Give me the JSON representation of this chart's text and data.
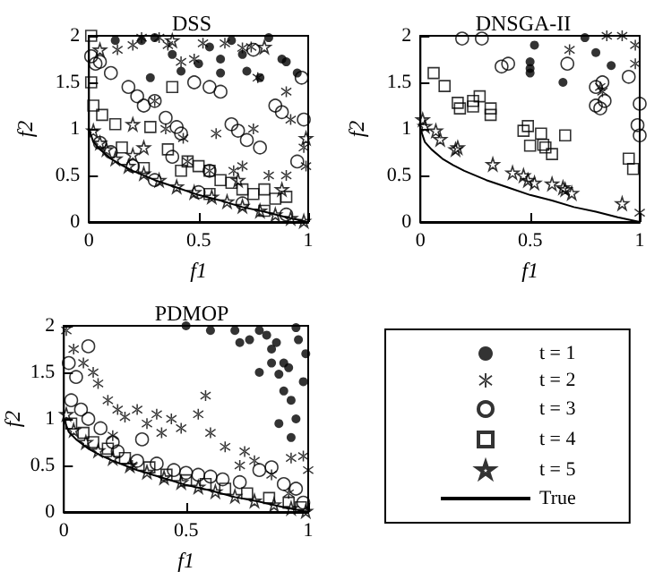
{
  "chart_data": [
    {
      "type": "scatter",
      "title": "DSS",
      "xlabel": "f1",
      "ylabel": "f2",
      "xlim": [
        0,
        1
      ],
      "ylim": [
        0,
        2
      ],
      "xticks": [
        0,
        0.5,
        1
      ],
      "yticks": [
        0,
        0.5,
        1,
        1.5,
        2
      ],
      "grid": false,
      "legend": false,
      "series": [
        {
          "color": "#000000",
          "marker": "circle",
          "x": [
            0.24,
            0.3,
            0.38,
            0.5,
            0.55,
            0.6,
            0.65,
            0.72,
            0.78,
            0.82,
            0.88,
            0.9,
            0.95,
            0.42,
            0.6,
            0.7,
            0.12,
            0.28
          ],
          "values": [
            1.95,
            1.98,
            1.8,
            1.7,
            1.88,
            1.75,
            1.95,
            1.62,
            1.55,
            1.98,
            1.75,
            1.72,
            1.6,
            1.62,
            1.6,
            1.8,
            1.95,
            1.55
          ]
        },
        {
          "color": "#000000",
          "marker": "cross",
          "x": [
            0.13,
            0.2,
            0.24,
            0.32,
            0.36,
            0.42,
            0.48,
            0.52,
            0.62,
            0.7,
            0.74,
            0.77,
            0.9,
            0.92,
            0.98,
            0.9,
            0.7,
            0.66,
            0.45,
            0.43,
            0.55,
            0.3,
            0.35,
            0.58,
            0.82,
            0.75,
            0.99
          ],
          "values": [
            1.85,
            1.9,
            1.98,
            1.98,
            1.9,
            1.72,
            1.75,
            1.92,
            1.92,
            1.87,
            1.88,
            1.55,
            1.4,
            1.1,
            0.8,
            0.5,
            0.6,
            0.55,
            0.65,
            0.9,
            0.55,
            1.3,
            1.0,
            0.95,
            0.5,
            1.0,
            0.6
          ]
        },
        {
          "color": "#000000",
          "marker": "circle",
          "x": [
            0.01,
            0.03,
            0.05,
            0.1,
            0.18,
            0.22,
            0.25,
            0.3,
            0.35,
            0.4,
            0.42,
            0.48,
            0.55,
            0.6,
            0.65,
            0.68,
            0.72,
            0.78,
            0.85,
            0.88,
            0.97,
            0.98,
            0.95,
            0.38,
            0.55,
            0.75,
            0.05,
            0.1,
            0.2,
            0.3,
            0.5,
            0.7,
            0.9
          ],
          "values": [
            1.78,
            1.7,
            1.72,
            1.6,
            1.45,
            1.35,
            1.25,
            1.3,
            1.12,
            1.02,
            0.95,
            1.5,
            1.45,
            1.4,
            1.05,
            0.98,
            0.88,
            0.8,
            1.25,
            1.18,
            1.55,
            1.1,
            0.65,
            0.7,
            0.55,
            1.85,
            0.85,
            0.75,
            0.6,
            0.45,
            0.32,
            0.2,
            0.08
          ]
        },
        {
          "color": "#000000",
          "marker": "square",
          "x": [
            0.01,
            0.01,
            0.02,
            0.06,
            0.12,
            0.15,
            0.28,
            0.38,
            0.36,
            0.45,
            0.5,
            0.55,
            0.6,
            0.65,
            0.7,
            0.75,
            0.8,
            0.85,
            0.9,
            0.42,
            0.25,
            0.55,
            0.8
          ],
          "values": [
            2.0,
            1.5,
            1.25,
            1.15,
            1.05,
            0.8,
            1.02,
            1.45,
            0.78,
            0.65,
            0.6,
            0.55,
            0.45,
            0.42,
            0.35,
            0.3,
            0.35,
            0.25,
            0.27,
            0.55,
            0.58,
            0.3,
            0.12
          ]
        },
        {
          "color": "#000000",
          "marker": "star",
          "x": [
            0.02,
            0.05,
            0.08,
            0.12,
            0.18,
            0.25,
            0.32,
            0.4,
            0.48,
            0.56,
            0.63,
            0.7,
            0.78,
            0.85,
            0.92,
            0.98,
            0.2,
            0.25,
            0.2,
            0.05,
            0.38,
            0.8,
            0.99,
            0.88,
            0.68
          ],
          "values": [
            0.98,
            0.85,
            0.78,
            0.68,
            0.6,
            0.52,
            0.45,
            0.38,
            0.32,
            0.27,
            0.22,
            0.17,
            0.12,
            0.08,
            0.04,
            0.01,
            0.72,
            0.8,
            1.05,
            1.85,
            1.95,
            1.88,
            0.9,
            0.35,
            0.45
          ]
        },
        {
          "type": "line",
          "color": "#000000",
          "marker": "none",
          "x": [
            0,
            0.02,
            0.05,
            0.1,
            0.15,
            0.2,
            0.3,
            0.4,
            0.5,
            0.6,
            0.7,
            0.8,
            0.9,
            1
          ],
          "values": [
            1,
            0.86,
            0.78,
            0.68,
            0.61,
            0.55,
            0.45,
            0.37,
            0.29,
            0.23,
            0.16,
            0.11,
            0.05,
            0
          ]
        }
      ]
    },
    {
      "type": "scatter",
      "title": "DNSGA-II",
      "xlabel": "f1",
      "ylabel": "f2",
      "xlim": [
        0,
        1
      ],
      "ylim": [
        0,
        2
      ],
      "xticks": [
        0,
        0.5,
        1
      ],
      "yticks": [
        0,
        0.5,
        1,
        1.5,
        2
      ],
      "grid": false,
      "legend": false,
      "series": [
        {
          "color": "#000000",
          "marker": "circle",
          "x": [
            0.52,
            0.5,
            0.5,
            0.5,
            0.65,
            0.8,
            0.87,
            0.75
          ],
          "values": [
            1.9,
            1.72,
            1.65,
            1.6,
            1.5,
            1.82,
            1.68,
            1.98
          ]
        },
        {
          "color": "#000000",
          "marker": "cross",
          "x": [
            0.85,
            0.92,
            0.98,
            0.98,
            0.82,
            0.83,
            0.68,
            1.0
          ],
          "values": [
            2.0,
            2.0,
            1.9,
            1.7,
            1.45,
            1.4,
            1.85,
            0.1
          ]
        },
        {
          "color": "#000000",
          "marker": "circle",
          "x": [
            0.19,
            0.28,
            0.37,
            0.4,
            0.67,
            0.8,
            0.8,
            0.82,
            0.84,
            0.83,
            0.95,
            1.0,
            0.99,
            1.0
          ],
          "values": [
            1.97,
            1.97,
            1.67,
            1.7,
            1.7,
            1.45,
            1.25,
            1.22,
            1.3,
            1.5,
            1.56,
            1.27,
            1.04,
            0.93
          ]
        },
        {
          "color": "#000000",
          "marker": "square",
          "x": [
            0.06,
            0.11,
            0.17,
            0.18,
            0.24,
            0.24,
            0.27,
            0.32,
            0.32,
            0.47,
            0.49,
            0.5,
            0.55,
            0.56,
            0.57,
            0.6,
            0.66,
            0.95,
            0.97
          ],
          "values": [
            1.6,
            1.46,
            1.28,
            1.22,
            1.24,
            1.3,
            1.35,
            1.22,
            1.15,
            0.98,
            1.03,
            0.82,
            0.95,
            0.83,
            0.8,
            0.73,
            0.93,
            0.68,
            0.57
          ]
        },
        {
          "color": "#000000",
          "marker": "star",
          "x": [
            0.01,
            0.02,
            0.07,
            0.09,
            0.16,
            0.17,
            0.33,
            0.42,
            0.47,
            0.49,
            0.52,
            0.6,
            0.65,
            0.66,
            0.69,
            0.92
          ],
          "values": [
            1.1,
            1.03,
            0.98,
            0.89,
            0.78,
            0.8,
            0.62,
            0.53,
            0.5,
            0.45,
            0.42,
            0.41,
            0.37,
            0.35,
            0.31,
            0.2
          ]
        },
        {
          "type": "line",
          "color": "#000000",
          "marker": "none",
          "x": [
            0,
            0.02,
            0.05,
            0.1,
            0.15,
            0.2,
            0.3,
            0.4,
            0.5,
            0.6,
            0.7,
            0.8,
            0.9,
            1
          ],
          "values": [
            1,
            0.86,
            0.78,
            0.68,
            0.61,
            0.55,
            0.45,
            0.37,
            0.29,
            0.23,
            0.16,
            0.11,
            0.05,
            0
          ]
        }
      ]
    },
    {
      "type": "scatter",
      "title": "PDMOP",
      "xlabel": "f1",
      "ylabel": "f2",
      "xlim": [
        0,
        1
      ],
      "ylim": [
        0,
        2
      ],
      "xticks": [
        0,
        0.5,
        1
      ],
      "yticks": [
        0,
        0.5,
        1,
        1.5,
        2
      ],
      "grid": false,
      "legend": "right",
      "series": [
        {
          "name": "t = 1",
          "color": "#000000",
          "marker": "circle",
          "x": [
            0.7,
            0.72,
            0.76,
            0.8,
            0.83,
            0.85,
            0.87,
            0.9,
            0.92,
            0.95,
            0.96,
            0.99,
            0.85,
            0.88,
            0.9,
            0.93,
            0.95,
            0.8,
            0.98,
            0.88,
            0.93,
            0.6,
            0.5
          ],
          "values": [
            1.95,
            1.82,
            1.85,
            1.95,
            1.9,
            1.75,
            1.82,
            1.6,
            1.55,
            1.98,
            1.85,
            1.7,
            1.6,
            1.48,
            1.3,
            1.2,
            1.0,
            1.5,
            1.4,
            0.95,
            0.8,
            1.95,
            2.0
          ]
        },
        {
          "name": "t = 2",
          "color": "#000000",
          "marker": "cross",
          "x": [
            0.01,
            0.04,
            0.08,
            0.12,
            0.14,
            0.18,
            0.22,
            0.25,
            0.3,
            0.34,
            0.38,
            0.4,
            0.44,
            0.48,
            0.55,
            0.6,
            0.66,
            0.74,
            0.78,
            0.85,
            0.93,
            0.98,
            1.0,
            0.72,
            0.2,
            0.58,
            0.28,
            0.92
          ],
          "values": [
            1.95,
            1.75,
            1.6,
            1.5,
            1.38,
            1.2,
            1.1,
            1.02,
            1.1,
            0.95,
            1.05,
            0.85,
            1.0,
            0.9,
            1.05,
            0.85,
            0.7,
            0.65,
            0.55,
            0.4,
            0.58,
            0.6,
            0.45,
            0.5,
            0.82,
            1.25,
            0.5,
            0.2
          ]
        },
        {
          "name": "t = 3",
          "color": "#000000",
          "marker": "circle",
          "x": [
            0.02,
            0.05,
            0.1,
            0.03,
            0.07,
            0.1,
            0.15,
            0.2,
            0.22,
            0.32,
            0.3,
            0.38,
            0.45,
            0.5,
            0.55,
            0.6,
            0.65,
            0.72,
            0.8,
            0.85,
            0.9,
            0.95,
            0.98
          ],
          "values": [
            1.6,
            1.45,
            1.78,
            1.2,
            1.1,
            1.0,
            0.9,
            0.75,
            0.65,
            0.78,
            0.55,
            0.52,
            0.45,
            0.42,
            0.4,
            0.38,
            0.35,
            0.32,
            0.45,
            0.48,
            0.3,
            0.25,
            0.1
          ]
        },
        {
          "name": "t = 4",
          "color": "#000000",
          "marker": "square",
          "x": [
            0.03,
            0.08,
            0.12,
            0.18,
            0.25,
            0.35,
            0.42,
            0.5,
            0.58,
            0.66,
            0.75,
            0.84,
            0.92,
            0.97
          ],
          "values": [
            0.95,
            0.85,
            0.75,
            0.68,
            0.58,
            0.48,
            0.4,
            0.34,
            0.3,
            0.25,
            0.2,
            0.15,
            0.1,
            0.05
          ]
        },
        {
          "name": "t = 5",
          "color": "#000000",
          "marker": "star",
          "x": [
            0.01,
            0.04,
            0.09,
            0.14,
            0.2,
            0.27,
            0.34,
            0.41,
            0.48,
            0.55,
            0.62,
            0.7,
            0.78,
            0.86,
            0.93,
            0.99
          ],
          "values": [
            1.05,
            0.88,
            0.75,
            0.66,
            0.58,
            0.5,
            0.43,
            0.37,
            0.32,
            0.27,
            0.22,
            0.17,
            0.12,
            0.08,
            0.04,
            0.01
          ]
        },
        {
          "name": "True",
          "type": "line",
          "color": "#000000",
          "marker": "none",
          "x": [
            0,
            0.02,
            0.05,
            0.1,
            0.15,
            0.2,
            0.3,
            0.4,
            0.5,
            0.6,
            0.7,
            0.8,
            0.9,
            1
          ],
          "values": [
            1,
            0.86,
            0.78,
            0.68,
            0.61,
            0.55,
            0.45,
            0.37,
            0.29,
            0.23,
            0.16,
            0.11,
            0.05,
            0
          ]
        }
      ]
    }
  ]
}
